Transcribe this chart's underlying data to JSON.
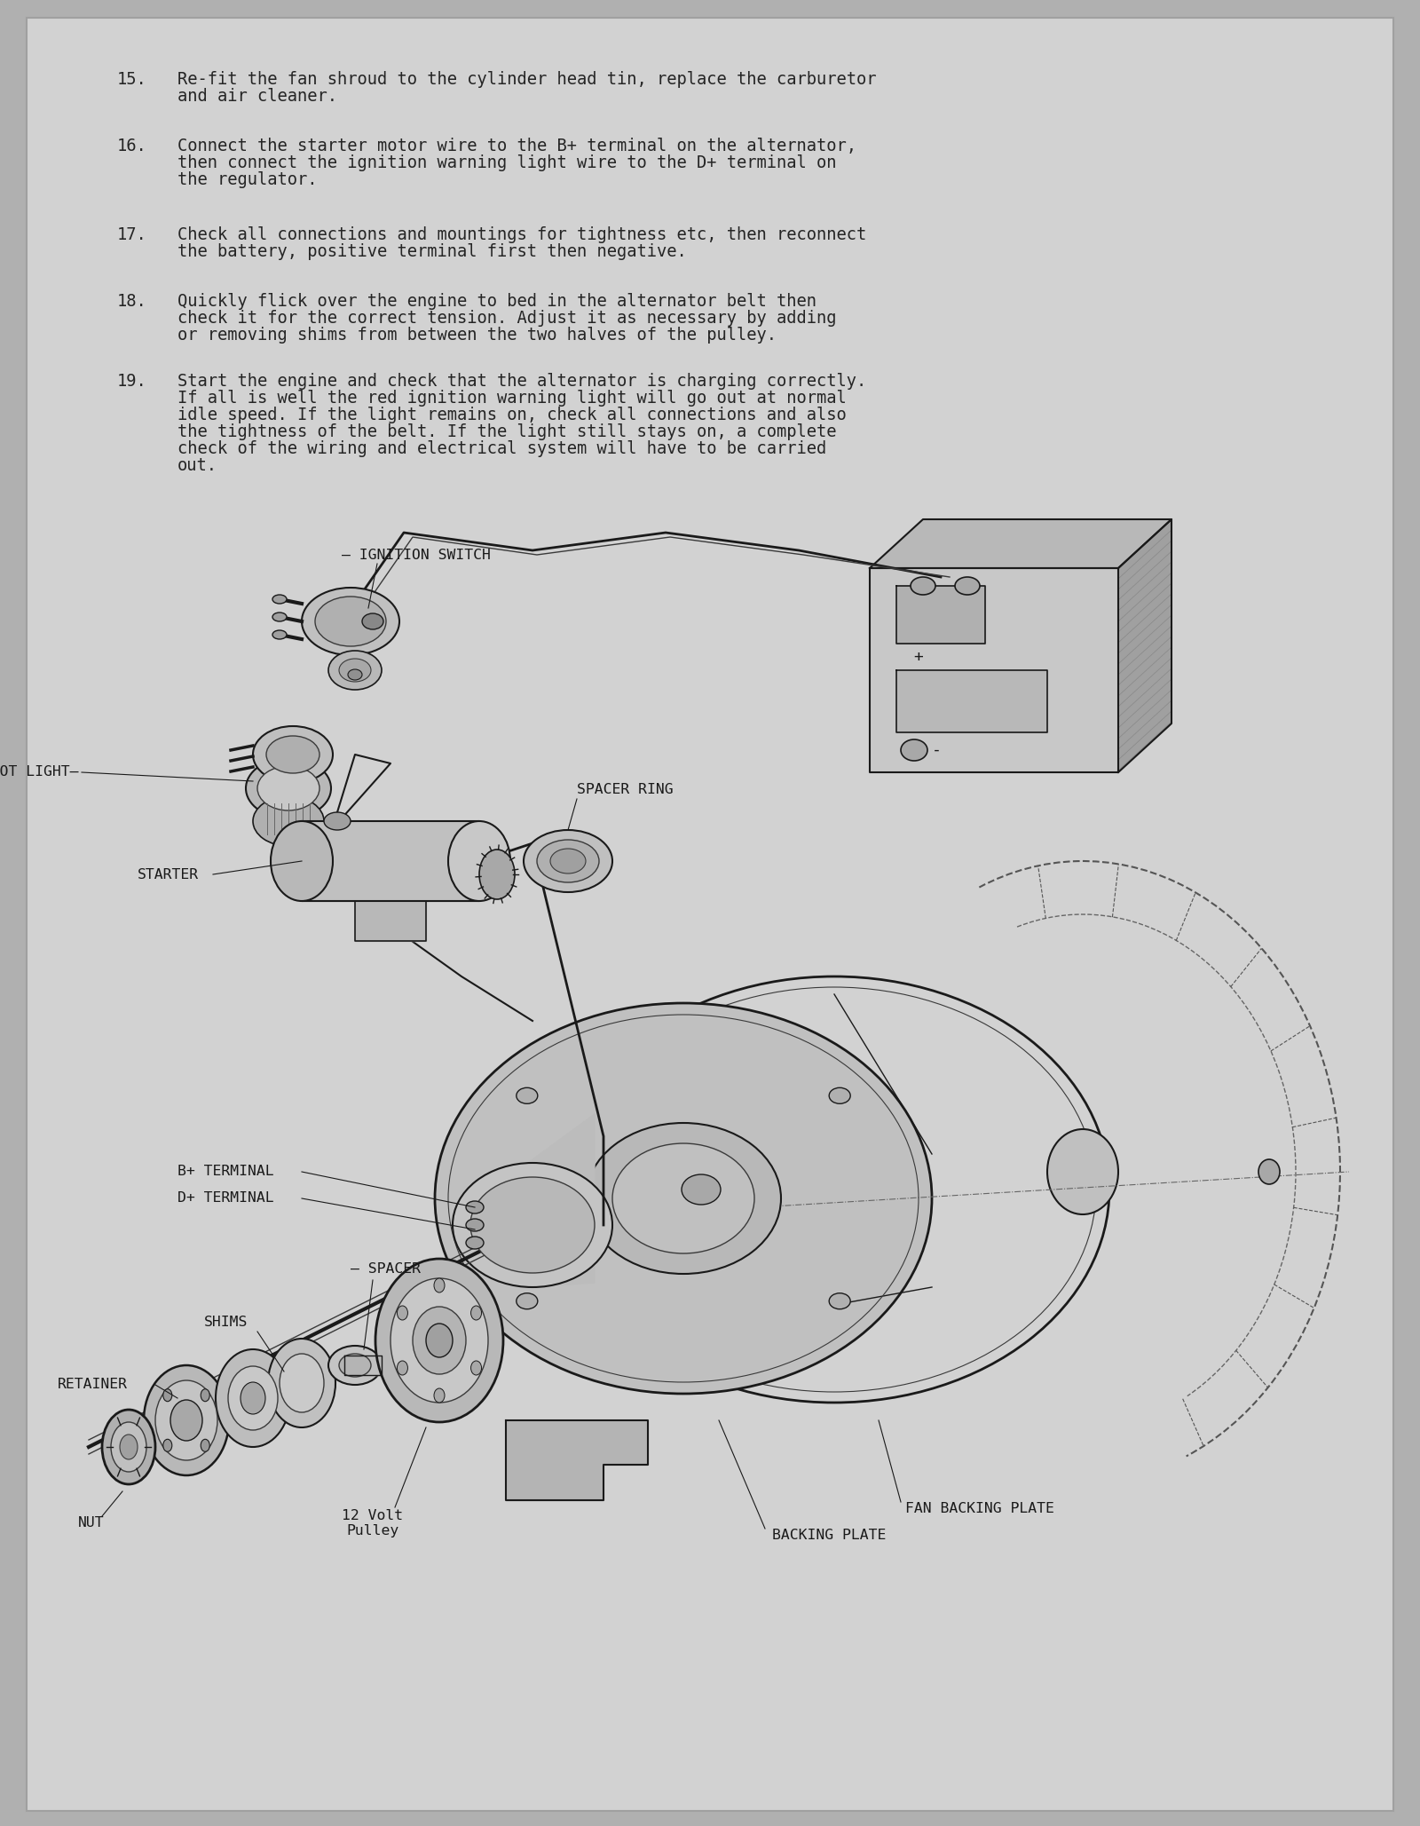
{
  "bg_color": "#c8c8c8",
  "page_color": "#d8d8d8",
  "text_color": "#2a2a2a",
  "line_color": "#1a1a1a",
  "instructions": [
    {
      "num": "15.",
      "lines": [
        "Re-fit the fan shroud to the cylinder head tin, replace the carburetor",
        "and air cleaner."
      ]
    },
    {
      "num": "16.",
      "lines": [
        "Connect the starter motor wire to the B+ terminal on the alternator,",
        "then connect the ignition warning light wire to the D+ terminal on",
        "the regulator."
      ]
    },
    {
      "num": "17.",
      "lines": [
        "Check all connections and mountings for tightness etc, then reconnect",
        "the battery, positive terminal first then negative."
      ]
    },
    {
      "num": "18.",
      "lines": [
        "Quickly flick over the engine to bed in the alternator belt then",
        "check it for the correct tension. Adjust it as necessary by adding",
        "or removing shims from between the two halves of the pulley."
      ]
    },
    {
      "num": "19.",
      "lines": [
        "Start the engine and check that the alternator is charging correctly.",
        "If all is well the red ignition warning light will go out at normal",
        "idle speed. If the light remains on, check all connections and also",
        "the tightness of the belt. If the light still stays on, a complete",
        "check of the wiring and electrical system will have to be carried",
        "out."
      ]
    }
  ],
  "diagram_labels": {
    "ignition_switch": "IGNITION SWITCH",
    "idiot_light": "IDIOT LIGHT",
    "starter": "STARTER",
    "spacer_ring": "SPACER RING",
    "b_terminal": "B+ TERMINAL",
    "d_terminal": "D+ TERMINAL",
    "spacer": "SPACER",
    "shims": "SHIMS",
    "retainer": "RETAINER",
    "nut": "NUT",
    "pulley": "12 Volt\nPulley",
    "fan_backing": "FAN BACKING PLATE",
    "backing": "BACKING PLATE"
  }
}
